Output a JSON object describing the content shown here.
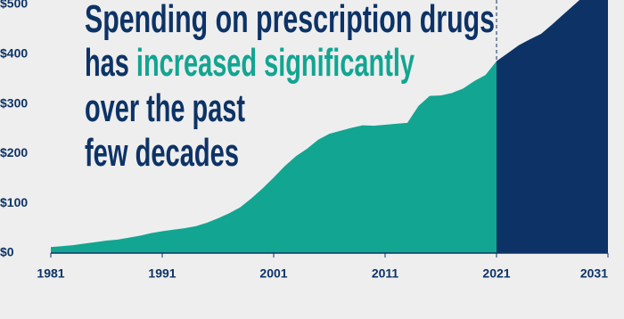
{
  "chart_data": {
    "type": "area",
    "title_lines": [
      [
        "Spending on prescription drugs"
      ],
      [
        "has ",
        "increased significantly"
      ],
      [
        "over the past"
      ],
      [
        "few decades"
      ]
    ],
    "title_colors": [
      [
        "#0d3366"
      ],
      [
        "#0d3366",
        "#12a592"
      ],
      [
        "#0d3366"
      ],
      [
        "#0d3366"
      ]
    ],
    "x": [
      1981,
      1982,
      1983,
      1984,
      1985,
      1986,
      1987,
      1988,
      1989,
      1990,
      1991,
      1992,
      1993,
      1994,
      1995,
      1996,
      1997,
      1998,
      1999,
      2000,
      2001,
      2002,
      2003,
      2004,
      2005,
      2006,
      2007,
      2008,
      2009,
      2010,
      2011,
      2012,
      2013,
      2014,
      2015,
      2016,
      2017,
      2018,
      2019,
      2020,
      2021,
      2022,
      2023,
      2024,
      2025,
      2026,
      2027,
      2028,
      2029,
      2030,
      2031
    ],
    "series": [
      {
        "color": "#12a592",
        "values": [
          12,
          14,
          16,
          19,
          22,
          25,
          27,
          31,
          35,
          40,
          44,
          47,
          50,
          54,
          61,
          70,
          80,
          92,
          110,
          130,
          152,
          175,
          195,
          210,
          228,
          240,
          246,
          252,
          257,
          256,
          258,
          260,
          262,
          296,
          316,
          317,
          322,
          331,
          346,
          358,
          386,
          null,
          null,
          null,
          null,
          null,
          null,
          null,
          null,
          null,
          null
        ]
      },
      {
        "color": "#0d3366",
        "values": [
          null,
          null,
          null,
          null,
          null,
          null,
          null,
          null,
          null,
          null,
          null,
          null,
          null,
          null,
          null,
          null,
          null,
          null,
          null,
          null,
          null,
          null,
          null,
          null,
          null,
          null,
          null,
          null,
          null,
          null,
          null,
          null,
          null,
          null,
          null,
          null,
          null,
          null,
          null,
          null,
          386,
          402,
          418,
          430,
          441,
          460,
          480,
          500,
          520,
          535,
          550
        ]
      }
    ],
    "xlim": [
      1981,
      2031
    ],
    "xticks": [
      1981,
      1991,
      2001,
      2011,
      2021,
      2031
    ],
    "ylim": [
      0,
      509
    ],
    "yticks": [
      {
        "value": 0,
        "label": "$0"
      },
      {
        "value": 100,
        "label": "$100"
      },
      {
        "value": 200,
        "label": "$200"
      },
      {
        "value": 300,
        "label": "$300"
      },
      {
        "value": 400,
        "label": "$400"
      },
      {
        "value": 500,
        "label": "$500"
      }
    ]
  }
}
